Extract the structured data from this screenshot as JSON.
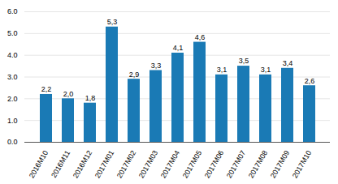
{
  "chart_data": {
    "type": "bar",
    "categories": [
      "2016M10",
      "2016M11",
      "2016M12",
      "2017M01",
      "2017M02",
      "2017M03",
      "2017M04",
      "2017M05",
      "2017M06",
      "2017M07",
      "2017M08",
      "2017M09",
      "2017M10"
    ],
    "values": [
      2.2,
      2.0,
      1.8,
      5.3,
      2.9,
      3.3,
      4.1,
      4.6,
      3.1,
      3.5,
      3.1,
      3.4,
      2.6
    ],
    "value_labels": [
      "2,2",
      "2,0",
      "1,8",
      "5,3",
      "2,9",
      "3,3",
      "4,1",
      "4,6",
      "3,1",
      "3,5",
      "3,1",
      "3,4",
      "2,6"
    ],
    "data_labels": true,
    "color": "#1a7ab5",
    "ylim": [
      0,
      6
    ],
    "yticks": [
      0,
      1,
      2,
      3,
      4,
      5,
      6
    ],
    "grid": true
  }
}
